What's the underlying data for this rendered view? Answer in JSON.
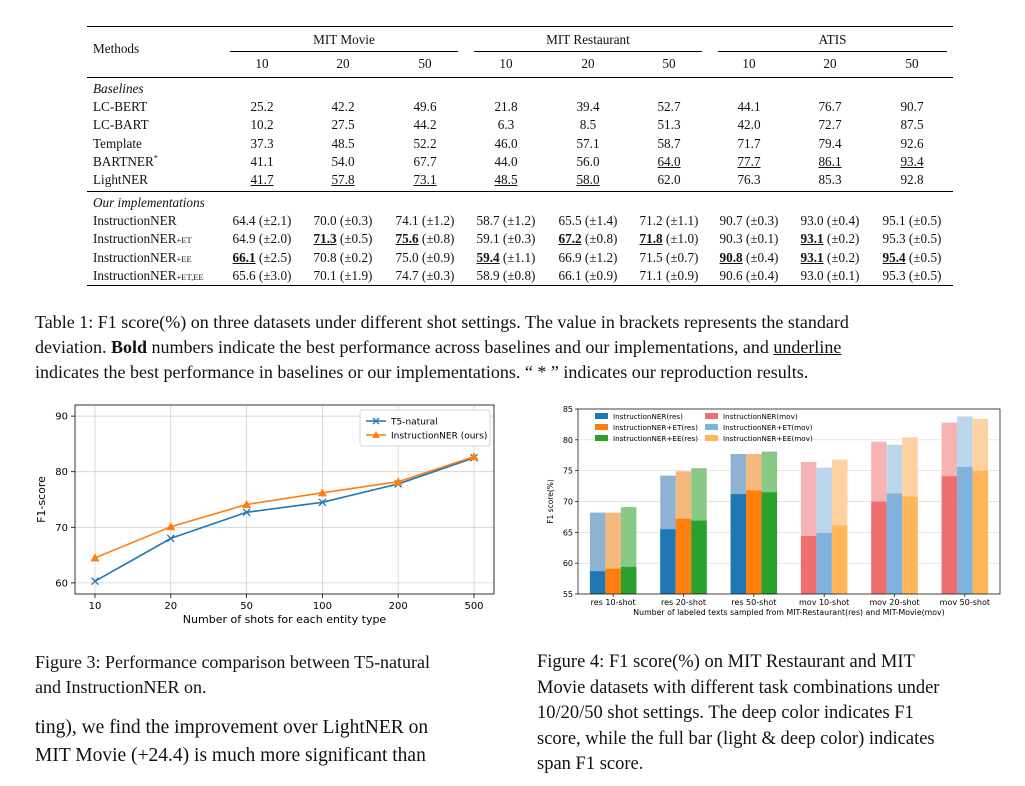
{
  "table": {
    "header": {
      "methods": "Methods",
      "groups": [
        "MIT Movie",
        "MIT Restaurant",
        "ATIS"
      ],
      "shots": [
        "10",
        "20",
        "50",
        "10",
        "20",
        "50",
        "10",
        "20",
        "50"
      ]
    },
    "sections": [
      {
        "title": "Baselines",
        "rows": [
          {
            "name": "LC-BERT",
            "cells": [
              {
                "v": "25.2"
              },
              {
                "v": "42.2"
              },
              {
                "v": "49.6"
              },
              {
                "v": "21.8"
              },
              {
                "v": "39.4"
              },
              {
                "v": "52.7"
              },
              {
                "v": "44.1"
              },
              {
                "v": "76.7"
              },
              {
                "v": "90.7"
              }
            ]
          },
          {
            "name": "LC-BART",
            "cells": [
              {
                "v": "10.2"
              },
              {
                "v": "27.5"
              },
              {
                "v": "44.2"
              },
              {
                "v": "6.3"
              },
              {
                "v": "8.5"
              },
              {
                "v": "51.3"
              },
              {
                "v": "42.0"
              },
              {
                "v": "72.7"
              },
              {
                "v": "87.5"
              }
            ]
          },
          {
            "name": "Template",
            "cells": [
              {
                "v": "37.3"
              },
              {
                "v": "48.5"
              },
              {
                "v": "52.2"
              },
              {
                "v": "46.0"
              },
              {
                "v": "57.1"
              },
              {
                "v": "58.7"
              },
              {
                "v": "71.7"
              },
              {
                "v": "79.4"
              },
              {
                "v": "92.6"
              }
            ]
          },
          {
            "name": "BARTNER",
            "name_sup": "*",
            "cells": [
              {
                "v": "41.1"
              },
              {
                "v": "54.0"
              },
              {
                "v": "67.7"
              },
              {
                "v": "44.0"
              },
              {
                "v": "56.0"
              },
              {
                "v": "64.0",
                "u": true
              },
              {
                "v": "77.7",
                "u": true
              },
              {
                "v": "86.1",
                "u": true
              },
              {
                "v": "93.4",
                "u": true
              }
            ]
          },
          {
            "name": "LightNER",
            "cells": [
              {
                "v": "41.7",
                "u": true
              },
              {
                "v": "57.8",
                "u": true
              },
              {
                "v": "73.1",
                "u": true
              },
              {
                "v": "48.5",
                "u": true
              },
              {
                "v": "58.0",
                "u": true
              },
              {
                "v": "62.0"
              },
              {
                "v": "76.3"
              },
              {
                "v": "85.3"
              },
              {
                "v": "92.8"
              }
            ]
          }
        ]
      },
      {
        "title": "Our implementations",
        "rows": [
          {
            "name": "InstructionNER",
            "cells": [
              {
                "v": "64.4",
                "sd": "(±2.1)"
              },
              {
                "v": "70.0",
                "sd": "(±0.3)"
              },
              {
                "v": "74.1",
                "sd": "(±1.2)"
              },
              {
                "v": "58.7",
                "sd": "(±1.2)"
              },
              {
                "v": "65.5",
                "sd": "(±1.4)"
              },
              {
                "v": "71.2",
                "sd": "(±1.1)"
              },
              {
                "v": "90.7",
                "sd": "(±0.3)"
              },
              {
                "v": "93.0",
                "sd": "(±0.4)"
              },
              {
                "v": "95.1",
                "sd": "(±0.5)"
              }
            ]
          },
          {
            "name": "InstructionNER",
            "name_sub": "+ET",
            "cells": [
              {
                "v": "64.9",
                "sd": "(±2.0)"
              },
              {
                "v": "71.3",
                "sd": "(±0.5)",
                "b": true,
                "u": true
              },
              {
                "v": "75.6",
                "sd": "(±0.8)",
                "b": true,
                "u": true
              },
              {
                "v": "59.1",
                "sd": "(±0.3)"
              },
              {
                "v": "67.2",
                "sd": "(±0.8)",
                "b": true,
                "u": true
              },
              {
                "v": "71.8",
                "sd": "(±1.0)",
                "b": true,
                "u": true
              },
              {
                "v": "90.3",
                "sd": "(±0.1)"
              },
              {
                "v": "93.1",
                "sd": "(±0.2)",
                "b": true,
                "u": true
              },
              {
                "v": "95.3",
                "sd": "(±0.5)"
              }
            ]
          },
          {
            "name": "InstructionNER",
            "name_sub": "+EE",
            "cells": [
              {
                "v": "66.1",
                "sd": "(±2.5)",
                "b": true,
                "u": true
              },
              {
                "v": "70.8",
                "sd": "(±0.2)"
              },
              {
                "v": "75.0",
                "sd": "(±0.9)"
              },
              {
                "v": "59.4",
                "sd": "(±1.1)",
                "b": true,
                "u": true
              },
              {
                "v": "66.9",
                "sd": "(±1.2)"
              },
              {
                "v": "71.5",
                "sd": "(±0.7)"
              },
              {
                "v": "90.8",
                "sd": "(±0.4)",
                "b": true,
                "u": true
              },
              {
                "v": "93.1",
                "sd": "(±0.2)",
                "b": true,
                "u": true
              },
              {
                "v": "95.4",
                "sd": "(±0.5)",
                "b": true,
                "u": true
              }
            ]
          },
          {
            "name": "InstructionNER",
            "name_sub": "+ET,EE",
            "cells": [
              {
                "v": "65.6",
                "sd": "(±3.0)"
              },
              {
                "v": "70.1",
                "sd": "(±1.9)"
              },
              {
                "v": "74.7",
                "sd": "(±0.3)"
              },
              {
                "v": "58.9",
                "sd": "(±0.8)"
              },
              {
                "v": "66.1",
                "sd": "(±0.9)"
              },
              {
                "v": "71.1",
                "sd": "(±0.9)"
              },
              {
                "v": "90.6",
                "sd": "(±0.4)"
              },
              {
                "v": "93.0",
                "sd": "(±0.1)"
              },
              {
                "v": "95.3",
                "sd": "(±0.5)"
              }
            ]
          }
        ]
      }
    ]
  },
  "table_caption": {
    "line1": "Table 1: F1 score(%) on three datasets under different shot settings. The value in brackets represents the standard",
    "line2_prefix": "deviation. ",
    "line2_bold": "Bold",
    "line2_mid": " numbers indicate the best performance across baselines and our implementations, and ",
    "line2_underline": "underline",
    "line3": "indicates the best performance in baselines or our implementations. “ * ” indicates our reproduction results."
  },
  "figure3_caption": {
    "line1": "Figure 3: Performance comparison between T5-natural",
    "line2": "and InstructionNER on."
  },
  "figure4_caption": {
    "line1": "Figure 4:  F1 score(%) on MIT Restaurant and MIT",
    "line2": "Movie datasets with different task combinations under",
    "line3": "10/20/50 shot settings.  The deep color indicates F1",
    "line4": "score, while the full bar (light & deep color) indicates",
    "line5": "span F1 score."
  },
  "body_text": {
    "line1": "ting), we find the improvement over LightNER on",
    "line2": "MIT Movie (+24.4) is much more significant than"
  },
  "chart_data": [
    {
      "type": "line",
      "xlabel": "Number of shots for each entity type",
      "ylabel": "F1-score",
      "x": [
        "10",
        "20",
        "50",
        "100",
        "200",
        "500"
      ],
      "ylim": [
        58,
        92
      ],
      "yticks": [
        60,
        70,
        80,
        90
      ],
      "grid": true,
      "legend_position": "top-right",
      "series": [
        {
          "name": "T5-natural",
          "color": "#1f77b4",
          "marker": "x",
          "values": [
            60.3,
            68.0,
            72.7,
            74.5,
            77.8,
            82.5
          ]
        },
        {
          "name": "InstructionNER (ours)",
          "color": "#ff7f0e",
          "marker": "triangle",
          "values": [
            64.5,
            70.1,
            74.1,
            76.2,
            78.2,
            82.7
          ]
        }
      ]
    },
    {
      "type": "bar",
      "xlabel": "Number of labeled texts sampled from MIT-Restaurant(res) and MIT-Movie(mov)",
      "ylabel": "F1 score(%)",
      "categories": [
        "res 10-shot",
        "res 20-shot",
        "res 50-shot",
        "mov 10-shot",
        "mov 20-shot",
        "mov 50-shot"
      ],
      "ylim": [
        55,
        85
      ],
      "yticks": [
        55,
        60,
        65,
        70,
        75,
        80,
        85
      ],
      "grid": true,
      "legend_position": "top",
      "series": [
        {
          "name": "InstructionNER(res)",
          "group": "res",
          "color": "#1f77b4",
          "light": "#8fb2d4",
          "f1": [
            58.7,
            65.5,
            71.2,
            null,
            null,
            null
          ],
          "span_f1": [
            68.2,
            74.2,
            77.7,
            null,
            null,
            null
          ]
        },
        {
          "name": "InstructionNER+ET(res)",
          "group": "res",
          "color": "#ff7f0e",
          "light": "#f6b97d",
          "f1": [
            59.1,
            67.2,
            71.8,
            null,
            null,
            null
          ],
          "span_f1": [
            68.2,
            74.9,
            77.7,
            null,
            null,
            null
          ]
        },
        {
          "name": "InstructionNER+EE(res)",
          "group": "res",
          "color": "#2ca02c",
          "light": "#88c986",
          "f1": [
            59.4,
            66.9,
            71.5,
            null,
            null,
            null
          ],
          "span_f1": [
            69.1,
            75.4,
            78.1,
            null,
            null,
            null
          ]
        },
        {
          "name": "InstructionNER(mov)",
          "group": "mov",
          "color": "#f06e6e",
          "light": "#f6b3b3",
          "f1": [
            null,
            null,
            null,
            64.4,
            70.0,
            74.1
          ],
          "span_f1": [
            null,
            null,
            null,
            76.4,
            79.7,
            82.8
          ]
        },
        {
          "name": "InstructionNER+ET(mov)",
          "group": "mov",
          "color": "#7fb2dc",
          "light": "#bcd7ec",
          "f1": [
            null,
            null,
            null,
            64.9,
            71.3,
            75.6
          ],
          "span_f1": [
            null,
            null,
            null,
            75.5,
            79.2,
            83.8
          ]
        },
        {
          "name": "InstructionNER+EE(mov)",
          "group": "mov",
          "color": "#ffb55a",
          "light": "#fed2a0",
          "f1": [
            null,
            null,
            null,
            66.1,
            70.8,
            75.0
          ],
          "span_f1": [
            null,
            null,
            null,
            76.8,
            80.4,
            83.4
          ]
        }
      ]
    }
  ]
}
